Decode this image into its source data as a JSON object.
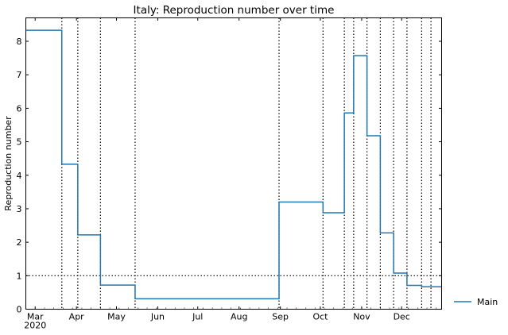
{
  "chart_data": {
    "type": "line",
    "title": "Italy: Reproduction number over time",
    "xlabel": "",
    "ylabel": "Reproduction number",
    "xlim": [
      "2020-02-23",
      "2020-12-31"
    ],
    "ylim": [
      0,
      8.7
    ],
    "yticks": [
      0,
      1,
      2,
      3,
      4,
      5,
      6,
      7,
      8
    ],
    "xticks": [
      {
        "date": "2020-03-01",
        "label": "Mar",
        "sublabel": "2020"
      },
      {
        "date": "2020-04-01",
        "label": "Apr",
        "sublabel": ""
      },
      {
        "date": "2020-05-01",
        "label": "May",
        "sublabel": ""
      },
      {
        "date": "2020-06-01",
        "label": "Jun",
        "sublabel": ""
      },
      {
        "date": "2020-07-01",
        "label": "Jul",
        "sublabel": ""
      },
      {
        "date": "2020-08-01",
        "label": "Aug",
        "sublabel": ""
      },
      {
        "date": "2020-09-01",
        "label": "Sep",
        "sublabel": ""
      },
      {
        "date": "2020-10-01",
        "label": "Oct",
        "sublabel": ""
      },
      {
        "date": "2020-11-01",
        "label": "Nov",
        "sublabel": ""
      },
      {
        "date": "2020-12-01",
        "label": "Dec",
        "sublabel": ""
      }
    ],
    "series": [
      {
        "name": "Main",
        "color": "#1f77b4",
        "step_changes": [
          {
            "date": "2020-02-23",
            "value": 8.33
          },
          {
            "date": "2020-03-21",
            "value": 4.33
          },
          {
            "date": "2020-04-02",
            "value": 2.22
          },
          {
            "date": "2020-04-19",
            "value": 0.72
          },
          {
            "date": "2020-05-15",
            "value": 0.31
          },
          {
            "date": "2020-08-31",
            "value": 3.2
          },
          {
            "date": "2020-10-03",
            "value": 2.88
          },
          {
            "date": "2020-10-19",
            "value": 5.86
          },
          {
            "date": "2020-10-26",
            "value": 7.57
          },
          {
            "date": "2020-11-05",
            "value": 5.18
          },
          {
            "date": "2020-11-15",
            "value": 2.28
          },
          {
            "date": "2020-11-25",
            "value": 1.08
          },
          {
            "date": "2020-12-05",
            "value": 0.71
          },
          {
            "date": "2020-12-16",
            "value": 0.67
          }
        ],
        "end_date": "2020-12-31"
      }
    ],
    "reference_lines": {
      "horizontal": [
        {
          "value": 1,
          "style": "dotted",
          "color": "#000000"
        }
      ],
      "vertical_dates": [
        "2020-03-21",
        "2020-04-02",
        "2020-04-19",
        "2020-05-15",
        "2020-08-31",
        "2020-10-03",
        "2020-10-19",
        "2020-10-26",
        "2020-11-05",
        "2020-11-15",
        "2020-11-25",
        "2020-12-05",
        "2020-12-16",
        "2020-12-23"
      ],
      "vertical_style": "dotted"
    },
    "legend": {
      "entries": [
        "Main"
      ],
      "placement": "right, outside plot, bottom"
    },
    "grid": false
  }
}
